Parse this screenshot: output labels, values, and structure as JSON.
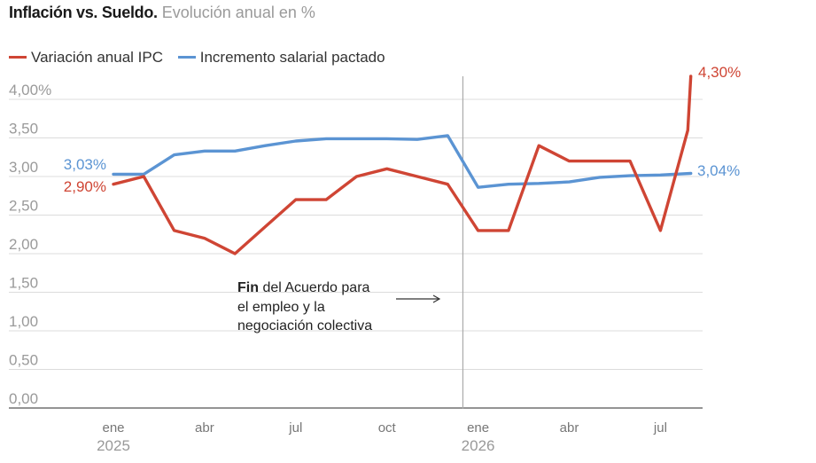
{
  "chart_data": {
    "type": "line",
    "title": "Inflación vs. Sueldo.",
    "subtitle": "Evolución anual en %",
    "y_ticks": [
      "4,00%",
      "3,50",
      "3,00",
      "2,50",
      "2,00",
      "1,50",
      "1,00",
      "0,50",
      "0,00"
    ],
    "ylim": [
      0,
      4.3
    ],
    "x_ticks": [
      {
        "month": 1,
        "label": "ene",
        "year": "2025"
      },
      {
        "month": 4,
        "label": "abr",
        "year": ""
      },
      {
        "month": 7,
        "label": "jul",
        "year": ""
      },
      {
        "month": 10,
        "label": "oct",
        "year": ""
      },
      {
        "month": 13,
        "label": "ene",
        "year": "2026"
      },
      {
        "month": 16,
        "label": "abr",
        "year": ""
      },
      {
        "month": 19,
        "label": "jul",
        "year": ""
      }
    ],
    "x_unit": "month index (1 = ene 2025)",
    "series": [
      {
        "name": "Variación anual IPC",
        "color": "#cf4534",
        "x": [
          1,
          2,
          3,
          4,
          5,
          6,
          7,
          8,
          9,
          10,
          11,
          12,
          13,
          14,
          15,
          16,
          17,
          18,
          19,
          19.9,
          20
        ],
        "y": [
          2.9,
          3.0,
          2.3,
          2.2,
          2.0,
          2.35,
          2.7,
          2.7,
          3.0,
          3.1,
          3.0,
          2.9,
          2.3,
          2.3,
          3.4,
          3.2,
          3.2,
          3.2,
          2.3,
          3.6,
          4.3
        ],
        "start_label": "2,90%",
        "end_label": "4,30%"
      },
      {
        "name": "Incremento salarial pactado",
        "color": "#5b94d3",
        "x": [
          1,
          2,
          3,
          4,
          5,
          6,
          7,
          8,
          9,
          10,
          11,
          12,
          13,
          14,
          15,
          16,
          17,
          18,
          19,
          20
        ],
        "y": [
          3.03,
          3.03,
          3.28,
          3.33,
          3.33,
          3.4,
          3.46,
          3.49,
          3.49,
          3.49,
          3.48,
          3.53,
          2.86,
          2.9,
          2.91,
          2.93,
          2.99,
          3.01,
          3.02,
          3.04
        ],
        "start_label": "3,03%",
        "end_label": "3,04%"
      }
    ],
    "annotation": {
      "x": 12.5,
      "bold": "Fin",
      "line1_rest": " del Acuerdo para",
      "line2": "el empleo y la",
      "line3": "negociación colectiva"
    },
    "grid": true
  }
}
